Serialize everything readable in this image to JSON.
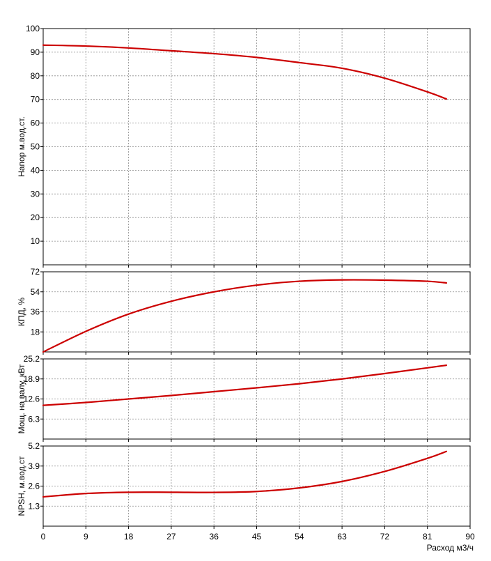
{
  "chart_data": [
    {
      "type": "line",
      "id": "head",
      "ylabel": "Напор м.вод.ст.",
      "ylim": [
        0,
        100
      ],
      "yticks": [
        "10",
        "20",
        "30",
        "40",
        "50",
        "60",
        "70",
        "80",
        "90",
        "100"
      ],
      "xlim": [
        0,
        90
      ],
      "grid": true,
      "series": [
        {
          "color": "#cc0000",
          "x": [
            0,
            9,
            18,
            27,
            36,
            45,
            54,
            63,
            72,
            81,
            85
          ],
          "y": [
            93,
            92.6,
            91.8,
            90.6,
            89.4,
            87.8,
            85.6,
            83.2,
            79,
            73.2,
            70.2
          ]
        }
      ]
    },
    {
      "type": "line",
      "id": "efficiency",
      "ylabel": "КПД, %",
      "ylim": [
        0,
        72
      ],
      "yticks": [
        "18",
        "36",
        "54",
        "72"
      ],
      "xlim": [
        0,
        90
      ],
      "grid": true,
      "series": [
        {
          "color": "#cc0000",
          "x": [
            0,
            9,
            18,
            27,
            36,
            45,
            54,
            63,
            72,
            81,
            85
          ],
          "y": [
            0,
            18.5,
            34,
            45.5,
            54,
            60,
            63.5,
            64.7,
            64.5,
            63.5,
            62
          ]
        }
      ]
    },
    {
      "type": "line",
      "id": "power",
      "ylabel": "Мощ. на валу, кВт",
      "ylim": [
        0,
        25.2
      ],
      "yticks": [
        "6.3",
        "12.6",
        "18.9",
        "25.2"
      ],
      "xlim": [
        0,
        90
      ],
      "grid": true,
      "series": [
        {
          "color": "#cc0000",
          "x": [
            0,
            9,
            18,
            27,
            36,
            45,
            54,
            63,
            72,
            81,
            85
          ],
          "y": [
            10.6,
            11.5,
            12.6,
            13.7,
            14.9,
            16.1,
            17.4,
            18.9,
            20.6,
            22.4,
            23.2
          ]
        }
      ]
    },
    {
      "type": "line",
      "id": "npsh",
      "ylabel": "NPSH, м.вод.ст",
      "ylim": [
        0,
        5.2
      ],
      "yticks": [
        "1.3",
        "2.6",
        "3.9",
        "5.2"
      ],
      "xlim": [
        0,
        90
      ],
      "xticks": [
        "0",
        "9",
        "18",
        "27",
        "36",
        "45",
        "54",
        "63",
        "72",
        "81",
        "90"
      ],
      "xlabel": "Расход м3/ч",
      "grid": true,
      "series": [
        {
          "color": "#cc0000",
          "x": [
            0,
            9,
            18,
            27,
            36,
            45,
            54,
            63,
            72,
            81,
            85
          ],
          "y": [
            1.9,
            2.12,
            2.2,
            2.2,
            2.19,
            2.25,
            2.48,
            2.9,
            3.55,
            4.4,
            4.85
          ]
        }
      ]
    }
  ]
}
